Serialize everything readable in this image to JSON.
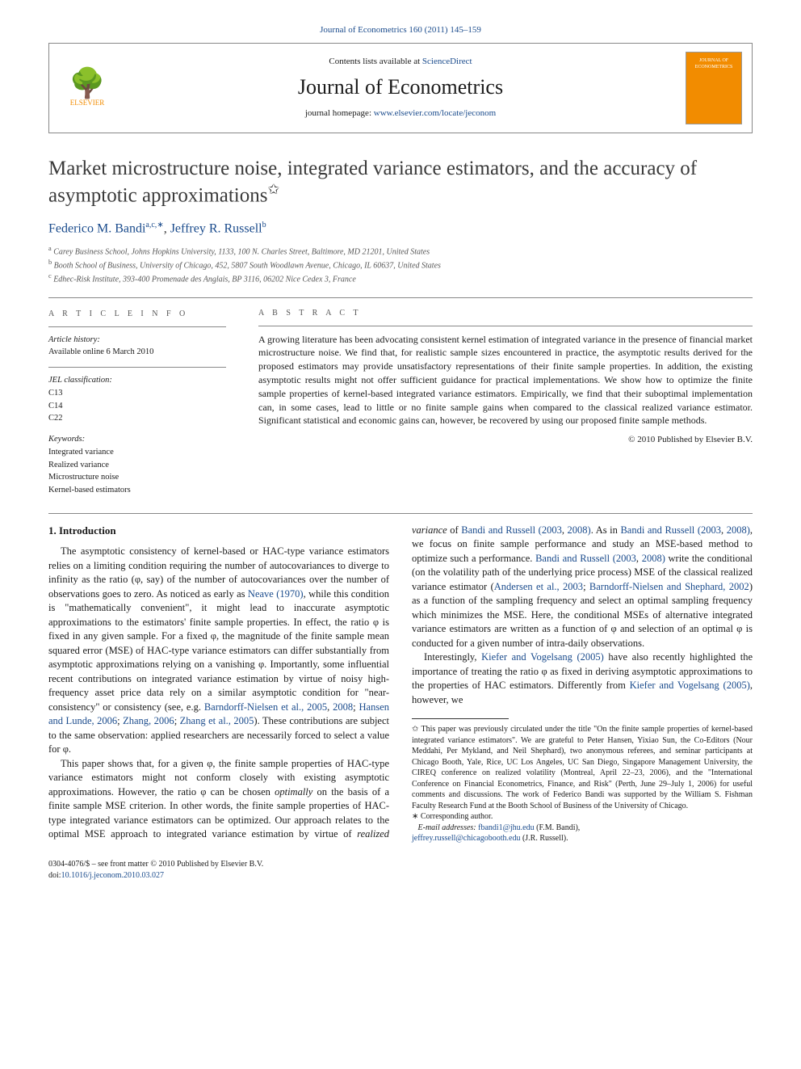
{
  "citation": "Journal of Econometrics 160 (2011) 145–159",
  "header": {
    "publisher_name": "ELSEVIER",
    "contents_prefix": "Contents lists available at ",
    "contents_link": "ScienceDirect",
    "journal_name": "Journal of Econometrics",
    "homepage_prefix": "journal homepage: ",
    "homepage_link": "www.elsevier.com/locate/jeconom",
    "cover_label": "JOURNAL OF ECONOMETRICS"
  },
  "title": "Market microstructure noise, integrated variance estimators, and the accuracy of asymptotic approximations",
  "title_marker": "✩",
  "authors_html_parts": {
    "a1_name": "Federico M. Bandi",
    "a1_aff": "a,c,",
    "a1_corr": "∗",
    "sep": ", ",
    "a2_name": "Jeffrey R. Russell",
    "a2_aff": "b"
  },
  "affiliations": {
    "a": "Carey Business School, Johns Hopkins University, 1133, 100 N. Charles Street, Baltimore, MD 21201, United States",
    "b": "Booth School of Business, University of Chicago, 452, 5807 South Woodlawn Avenue, Chicago, IL 60637, United States",
    "c": "Edhec-Risk Institute, 393-400 Promenade des Anglais, BP 3116, 06202 Nice Cedex 3, France"
  },
  "article_info": {
    "heading": "A R T I C L E   I N F O",
    "history_label": "Article history:",
    "history_value": "Available online 6 March 2010",
    "jel_label": "JEL classification:",
    "jel_codes": [
      "C13",
      "C14",
      "C22"
    ],
    "keywords_label": "Keywords:",
    "keywords": [
      "Integrated variance",
      "Realized variance",
      "Microstructure noise",
      "Kernel-based estimators"
    ]
  },
  "abstract": {
    "heading": "A B S T R A C T",
    "text": "A growing literature has been advocating consistent kernel estimation of integrated variance in the presence of financial market microstructure noise. We find that, for realistic sample sizes encountered in practice, the asymptotic results derived for the proposed estimators may provide unsatisfactory representations of their finite sample properties. In addition, the existing asymptotic results might not offer sufficient guidance for practical implementations. We show how to optimize the finite sample properties of kernel-based integrated variance estimators. Empirically, we find that their suboptimal implementation can, in some cases, lead to little or no finite sample gains when compared to the classical realized variance estimator. Significant statistical and economic gains can, however, be recovered by using our proposed finite sample methods.",
    "copyright": "© 2010 Published by Elsevier B.V."
  },
  "body": {
    "section_title": "1. Introduction",
    "p1a": "The asymptotic consistency of kernel-based or HAC-type variance estimators relies on a limiting condition requiring the number of autocovariances to diverge to infinity as the ratio (φ, say) of the number of autocovariances over the number of observations goes to zero. As noticed as early as ",
    "p1_link1": "Neave (1970)",
    "p1b": ", while this condition is \"mathematically convenient\", it might lead to inaccurate asymptotic approximations to the estimators' finite sample properties. In effect, the ratio φ is fixed in any given sample. For a fixed φ, the magnitude of the finite sample mean squared error (MSE) of HAC-type variance estimators can differ substantially from asymptotic approximations relying on a vanishing φ. Importantly, some influential recent contributions on integrated variance estimation by virtue of noisy high-frequency asset price data rely on a similar asymptotic condition for \"near-consistency\" or consistency (see, e.g. ",
    "p1_link2": "Barndorff-Nielsen et al., 2005",
    "p1c": ", ",
    "p1_link3": "2008",
    "p1d": "; ",
    "p1_link4": "Hansen and Lunde, 2006",
    "p1e": "; ",
    "p1_link5": "Zhang, 2006",
    "p1f": "; ",
    "p1_link6": "Zhang et al., 2005",
    "p1g": "). These contributions are subject to the same observation: applied researchers are necessarily forced to select a value for φ.",
    "p2a": "This paper shows that, for a given φ, the finite sample properties of HAC-type variance estimators might not conform closely with existing asymptotic approximations. However, the ratio φ can be chosen ",
    "p2_em1": "optimally",
    "p2b": " on the basis of a finite sample MSE criterion. In other words, the finite sample properties of HAC-type integrated variance estimators can be optimized. Our approach relates to the optimal MSE approach to integrated variance estimation by virtue of ",
    "p2_em2": "realized variance",
    "p2c": " of ",
    "p2_link1": "Bandi and Russell (2003",
    "p2d": ", ",
    "p2_link2": "2008)",
    "p2e": ". As in ",
    "p2_link3": "Bandi and Russell (2003",
    "p2f": ", ",
    "p2_link4": "2008)",
    "p2g": ", we focus on finite sample performance and study an MSE-based method to optimize such a performance. ",
    "p2_link5": "Bandi and Russell (2003",
    "p2h": ", ",
    "p2_link6": "2008)",
    "p2i": " write the conditional (on the volatility path of the underlying price process) MSE of the classical realized variance estimator (",
    "p2_link7": "Andersen et al., 2003",
    "p2j": "; ",
    "p2_link8": "Barndorff-Nielsen and Shephard, 2002",
    "p2k": ") as a function of the sampling frequency and select an optimal sampling frequency which minimizes the MSE. Here, the conditional MSEs of alternative integrated variance estimators are written as a function of φ and selection of an optimal φ is conducted for a given number of intra-daily observations.",
    "p3a": "Interestingly, ",
    "p3_link1": "Kiefer and Vogelsang (2005)",
    "p3b": " have also recently highlighted the importance of treating the ratio φ as fixed in deriving asymptotic approximations to the properties of HAC estimators. Differently from ",
    "p3_link2": "Kiefer and Vogelsang (2005)",
    "p3c": ", however, we"
  },
  "footnotes": {
    "thanks_marker": "✩",
    "thanks": " This paper was previously circulated under the title \"On the finite sample properties of kernel-based integrated variance estimators\". We are grateful to Peter Hansen, Yixiao Sun, the Co-Editors (Nour Meddahi, Per Mykland, and Neil Shephard), two anonymous referees, and seminar participants at Chicago Booth, Yale, Rice, UC Los Angeles, UC San Diego, Singapore Management University, the CIREQ conference on realized volatility (Montreal, April 22–23, 2006), and the \"International Conference on Financial Econometrics, Finance, and Risk\" (Perth, June 29–July 1, 2006) for useful comments and discussions. The work of Federico Bandi was supported by the William S. Fishman Faculty Research Fund at the Booth School of Business of the University of Chicago.",
    "corr_marker": "∗",
    "corr_label": " Corresponding author.",
    "email_label": "E-mail addresses:",
    "email1": "fbandi1@jhu.edu",
    "email1_who": " (F.M. Bandi), ",
    "email2": "jeffrey.russell@chicagobooth.edu",
    "email2_who": " (J.R. Russell)."
  },
  "footer": {
    "line1": "0304-4076/$ – see front matter © 2010 Published by Elsevier B.V.",
    "doi_label": "doi:",
    "doi": "10.1016/j.jeconom.2010.03.027"
  },
  "colors": {
    "link": "#1a4b8c",
    "elsevier_orange": "#f28c00",
    "text": "#1a1a1a",
    "rule": "#888888"
  }
}
